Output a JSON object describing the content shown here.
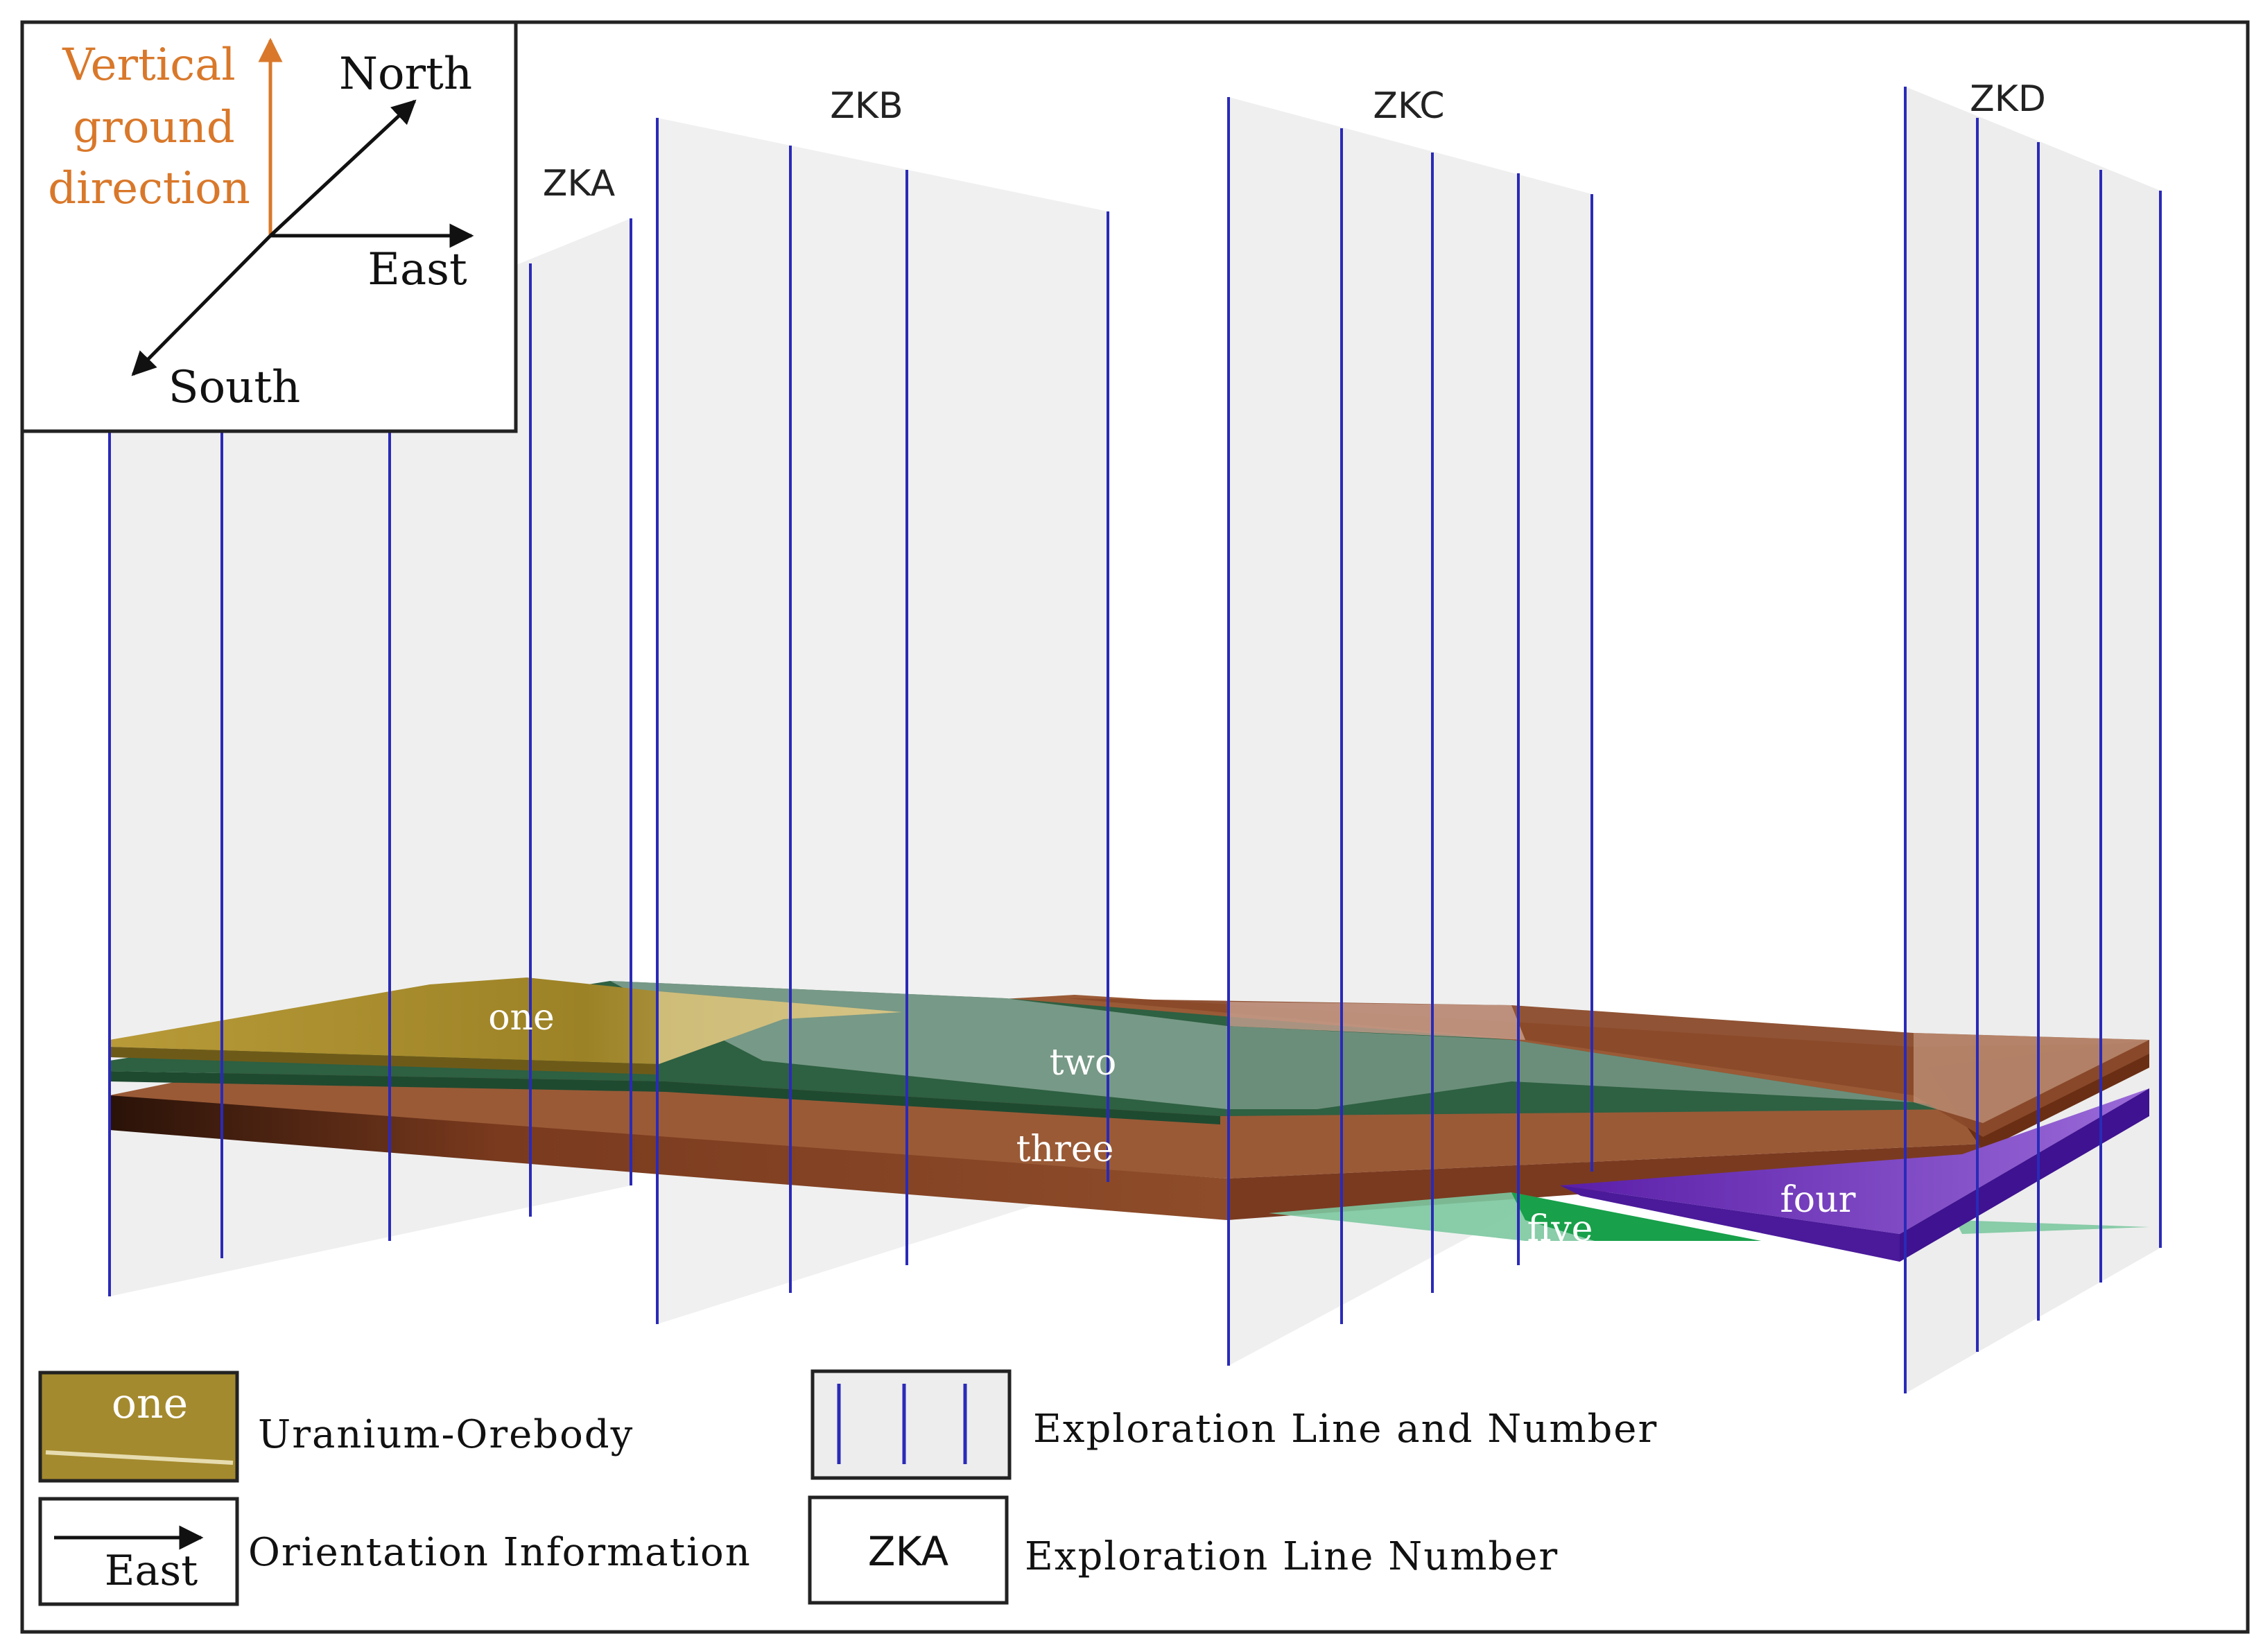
{
  "compass": {
    "vertical_label_lines": [
      "Vertical",
      "ground",
      "direction"
    ],
    "north": "North",
    "east": "East",
    "south": "South",
    "vertical_color": "#d9782a"
  },
  "exploration_lines": {
    "zka": "ZKA",
    "zkb": "ZKB",
    "zkc": "ZKC",
    "zkd": "ZKD",
    "line_color": "#2a2ab8"
  },
  "orebodies": {
    "one": {
      "label": "one",
      "color": "#a0862a"
    },
    "two": {
      "label": "two",
      "color": "#2e6042"
    },
    "three": {
      "label": "three",
      "color": "#8a4a2a"
    },
    "four": {
      "label": "four",
      "color": "#6a2ab8"
    },
    "five": {
      "label": "five",
      "color": "#1e9c5a"
    }
  },
  "legend": {
    "orebody_sample": "one",
    "orebody_label": "Uranium-Orebody",
    "exploration_line_label": "Exploration  Line  and Number",
    "orientation_sample": "East",
    "orientation_label": "Orientation  Information",
    "line_number_sample": "ZKA",
    "line_number_label": "Exploration  Line  Number"
  }
}
